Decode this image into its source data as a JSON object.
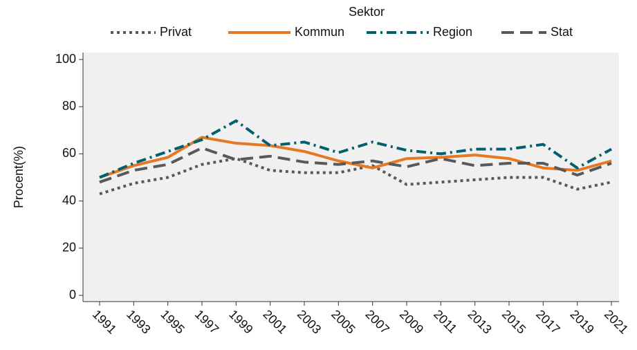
{
  "chart_data": {
    "type": "line",
    "legend_title": "Sektor",
    "y_label": "Procent(%)",
    "categories": [
      "1991",
      "1993",
      "1995",
      "1997",
      "1999",
      "2001",
      "2003",
      "2005",
      "2007",
      "2009",
      "2011",
      "2013",
      "2015",
      "2017",
      "2019",
      "2021"
    ],
    "series": [
      {
        "name": "Privat",
        "color": "#58595b",
        "dash": "dotted",
        "values": [
          43,
          47.5,
          50,
          55.5,
          58,
          53,
          52,
          52,
          55,
          47,
          48,
          49,
          50,
          50,
          45,
          48
        ]
      },
      {
        "name": "Kommun",
        "color": "#e87722",
        "dash": "solid",
        "values": [
          50,
          55,
          58.5,
          67,
          64.5,
          63.5,
          61,
          57,
          54,
          58,
          58.5,
          59.5,
          58,
          54,
          53,
          57
        ]
      },
      {
        "name": "Region",
        "color": "#00606e",
        "dash": "dashdot",
        "values": [
          50,
          56,
          61,
          66,
          74,
          63.5,
          65,
          60.5,
          65,
          61.5,
          60,
          62,
          62,
          64,
          54,
          62
        ]
      },
      {
        "name": "Stat",
        "color": "#58595b",
        "dash": "dashed",
        "values": [
          48,
          53,
          55.5,
          62.5,
          57.5,
          59,
          56.5,
          55.5,
          57,
          54.5,
          58,
          55,
          56,
          56,
          51,
          56
        ]
      }
    ],
    "ylim": [
      0,
      100
    ],
    "yticks": [
      0,
      20,
      40,
      60,
      80,
      100
    ],
    "grid": false,
    "legend": "top"
  }
}
